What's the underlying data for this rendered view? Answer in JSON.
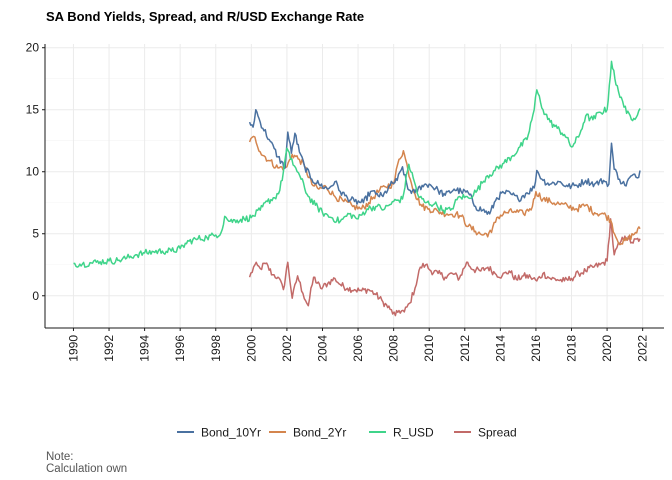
{
  "chart_data": {
    "type": "line",
    "title": "SA Bond Yields, Spread, and R/USD Exchange Rate",
    "xlabel": "",
    "ylabel": "",
    "xlim": [
      1990,
      2022
    ],
    "ylim": [
      -2.6,
      20.3
    ],
    "x_ticks": [
      "1990",
      "1992",
      "1994",
      "1996",
      "1998",
      "2000",
      "2002",
      "2004",
      "2006",
      "2008",
      "2010",
      "2012",
      "2014",
      "2016",
      "2018",
      "2020",
      "2022"
    ],
    "y_ticks": [
      "0",
      "5",
      "10",
      "15",
      "20"
    ],
    "grid": true,
    "legend_position": "bottom",
    "series": [
      {
        "name": "Bond_10Yr",
        "color": "#4a71a0",
        "points": [
          [
            1999.9,
            14.0
          ],
          [
            2000.1,
            13.6
          ],
          [
            2000.25,
            15.0
          ],
          [
            2000.5,
            14.0
          ],
          [
            2001.0,
            12.6
          ],
          [
            2001.5,
            11.2
          ],
          [
            2001.9,
            10.3
          ],
          [
            2002.05,
            13.2
          ],
          [
            2002.25,
            11.5
          ],
          [
            2002.45,
            13.1
          ],
          [
            2002.7,
            11.6
          ],
          [
            2003.0,
            10.4
          ],
          [
            2003.4,
            9.4
          ],
          [
            2003.8,
            9.0
          ],
          [
            2004.3,
            8.6
          ],
          [
            2004.7,
            9.2
          ],
          [
            2005.0,
            8.4
          ],
          [
            2005.4,
            7.9
          ],
          [
            2005.8,
            7.6
          ],
          [
            2006.3,
            7.5
          ],
          [
            2006.7,
            8.4
          ],
          [
            2007.0,
            8.2
          ],
          [
            2007.4,
            8.0
          ],
          [
            2007.8,
            8.9
          ],
          [
            2008.2,
            9.3
          ],
          [
            2008.5,
            10.4
          ],
          [
            2008.8,
            8.6
          ],
          [
            2009.2,
            8.3
          ],
          [
            2009.6,
            8.9
          ],
          [
            2010.0,
            9.0
          ],
          [
            2010.5,
            8.5
          ],
          [
            2010.9,
            8.1
          ],
          [
            2011.4,
            8.6
          ],
          [
            2011.8,
            8.4
          ],
          [
            2012.2,
            8.3
          ],
          [
            2012.6,
            7.2
          ],
          [
            2013.0,
            6.9
          ],
          [
            2013.4,
            6.6
          ],
          [
            2013.8,
            7.9
          ],
          [
            2014.2,
            8.3
          ],
          [
            2014.6,
            8.2
          ],
          [
            2015.0,
            7.8
          ],
          [
            2015.5,
            8.3
          ],
          [
            2015.9,
            8.7
          ],
          [
            2016.05,
            10.1
          ],
          [
            2016.4,
            9.3
          ],
          [
            2016.8,
            9.0
          ],
          [
            2017.3,
            9.2
          ],
          [
            2017.8,
            8.8
          ],
          [
            2018.3,
            8.9
          ],
          [
            2018.8,
            9.3
          ],
          [
            2019.3,
            9.0
          ],
          [
            2019.8,
            9.3
          ],
          [
            2020.1,
            9.0
          ],
          [
            2020.25,
            12.3
          ],
          [
            2020.4,
            10.2
          ],
          [
            2020.7,
            9.4
          ],
          [
            2021.0,
            8.9
          ],
          [
            2021.4,
            9.7
          ],
          [
            2021.7,
            9.5
          ],
          [
            2021.85,
            10.1
          ]
        ]
      },
      {
        "name": "Bond_2Yr",
        "color": "#d4854e",
        "points": [
          [
            1999.9,
            12.4
          ],
          [
            2000.2,
            12.8
          ],
          [
            2000.5,
            11.6
          ],
          [
            2001.0,
            10.9
          ],
          [
            2001.5,
            10.3
          ],
          [
            2002.0,
            10.4
          ],
          [
            2002.3,
            11.4
          ],
          [
            2002.7,
            11.0
          ],
          [
            2003.0,
            10.4
          ],
          [
            2003.4,
            9.0
          ],
          [
            2003.8,
            8.6
          ],
          [
            2004.2,
            8.8
          ],
          [
            2004.7,
            8.0
          ],
          [
            2005.2,
            7.6
          ],
          [
            2005.7,
            7.2
          ],
          [
            2006.2,
            7.0
          ],
          [
            2006.6,
            7.5
          ],
          [
            2007.0,
            8.2
          ],
          [
            2007.5,
            8.8
          ],
          [
            2008.0,
            9.0
          ],
          [
            2008.3,
            11.0
          ],
          [
            2008.55,
            11.7
          ],
          [
            2008.8,
            10.2
          ],
          [
            2009.2,
            8.2
          ],
          [
            2009.6,
            7.2
          ],
          [
            2010.0,
            7.0
          ],
          [
            2010.5,
            6.8
          ],
          [
            2011.0,
            6.6
          ],
          [
            2011.5,
            6.6
          ],
          [
            2011.8,
            6.4
          ],
          [
            2012.2,
            5.6
          ],
          [
            2012.6,
            5.2
          ],
          [
            2013.0,
            4.9
          ],
          [
            2013.5,
            5.1
          ],
          [
            2013.8,
            6.3
          ],
          [
            2014.3,
            6.7
          ],
          [
            2014.8,
            6.8
          ],
          [
            2015.3,
            6.6
          ],
          [
            2015.8,
            7.2
          ],
          [
            2016.0,
            8.4
          ],
          [
            2016.4,
            7.8
          ],
          [
            2016.8,
            7.6
          ],
          [
            2017.3,
            7.4
          ],
          [
            2017.8,
            7.2
          ],
          [
            2018.3,
            7.0
          ],
          [
            2018.8,
            7.3
          ],
          [
            2019.3,
            6.7
          ],
          [
            2019.8,
            6.6
          ],
          [
            2020.2,
            6.1
          ],
          [
            2020.5,
            4.7
          ],
          [
            2020.8,
            4.2
          ],
          [
            2021.2,
            4.6
          ],
          [
            2021.6,
            5.1
          ],
          [
            2021.85,
            5.4
          ]
        ]
      },
      {
        "name": "R_USD",
        "color": "#3fd48a",
        "points": [
          [
            1990.0,
            2.6
          ],
          [
            1990.5,
            2.55
          ],
          [
            1991.0,
            2.65
          ],
          [
            1991.5,
            2.75
          ],
          [
            1992.0,
            2.8
          ],
          [
            1992.5,
            2.85
          ],
          [
            1993.0,
            3.05
          ],
          [
            1993.5,
            3.3
          ],
          [
            1994.0,
            3.45
          ],
          [
            1994.5,
            3.55
          ],
          [
            1995.0,
            3.6
          ],
          [
            1995.5,
            3.6
          ],
          [
            1996.0,
            3.8
          ],
          [
            1996.5,
            4.4
          ],
          [
            1997.0,
            4.6
          ],
          [
            1997.5,
            4.7
          ],
          [
            1998.0,
            4.9
          ],
          [
            1998.3,
            5.1
          ],
          [
            1998.5,
            6.4
          ],
          [
            1998.8,
            6.0
          ],
          [
            1999.2,
            6.1
          ],
          [
            1999.6,
            6.2
          ],
          [
            2000.0,
            6.3
          ],
          [
            2000.5,
            6.9
          ],
          [
            2000.9,
            7.6
          ],
          [
            2001.3,
            7.9
          ],
          [
            2001.6,
            8.5
          ],
          [
            2001.8,
            10.0
          ],
          [
            2002.0,
            11.9
          ],
          [
            2002.2,
            11.0
          ],
          [
            2002.5,
            10.3
          ],
          [
            2002.8,
            9.4
          ],
          [
            2003.2,
            8.0
          ],
          [
            2003.6,
            7.3
          ],
          [
            2004.0,
            6.7
          ],
          [
            2004.5,
            6.3
          ],
          [
            2005.0,
            6.0
          ],
          [
            2005.5,
            6.6
          ],
          [
            2006.0,
            6.2
          ],
          [
            2006.5,
            7.0
          ],
          [
            2007.0,
            7.2
          ],
          [
            2007.5,
            7.0
          ],
          [
            2008.0,
            7.6
          ],
          [
            2008.5,
            7.8
          ],
          [
            2008.85,
            10.6
          ],
          [
            2009.1,
            9.5
          ],
          [
            2009.4,
            8.0
          ],
          [
            2009.8,
            7.5
          ],
          [
            2010.3,
            7.4
          ],
          [
            2010.8,
            6.9
          ],
          [
            2011.2,
            6.9
          ],
          [
            2011.7,
            8.0
          ],
          [
            2012.2,
            7.9
          ],
          [
            2012.7,
            8.5
          ],
          [
            2013.2,
            9.6
          ],
          [
            2013.7,
            10.1
          ],
          [
            2014.2,
            10.7
          ],
          [
            2014.7,
            11.3
          ],
          [
            2015.1,
            12.0
          ],
          [
            2015.5,
            12.6
          ],
          [
            2015.9,
            15.0
          ],
          [
            2016.05,
            16.6
          ],
          [
            2016.4,
            15.0
          ],
          [
            2016.8,
            14.0
          ],
          [
            2017.2,
            13.5
          ],
          [
            2017.6,
            13.0
          ],
          [
            2018.0,
            12.0
          ],
          [
            2018.4,
            12.8
          ],
          [
            2018.8,
            14.5
          ],
          [
            2019.2,
            14.2
          ],
          [
            2019.6,
            14.8
          ],
          [
            2020.0,
            15.0
          ],
          [
            2020.25,
            18.9
          ],
          [
            2020.5,
            17.0
          ],
          [
            2020.8,
            16.0
          ],
          [
            2021.1,
            14.7
          ],
          [
            2021.5,
            14.3
          ],
          [
            2021.85,
            15.1
          ]
        ]
      },
      {
        "name": "Spread",
        "color": "#c26a68",
        "points": [
          [
            1999.9,
            1.5
          ],
          [
            2000.2,
            2.5
          ],
          [
            2000.5,
            2.2
          ],
          [
            2000.8,
            2.6
          ],
          [
            2001.2,
            1.7
          ],
          [
            2001.5,
            1.5
          ],
          [
            2001.8,
            0.5
          ],
          [
            2002.05,
            2.7
          ],
          [
            2002.3,
            -0.2
          ],
          [
            2002.6,
            1.6
          ],
          [
            2002.9,
            0.2
          ],
          [
            2003.2,
            -0.8
          ],
          [
            2003.5,
            1.5
          ],
          [
            2003.9,
            0.6
          ],
          [
            2004.3,
            1.0
          ],
          [
            2004.7,
            1.4
          ],
          [
            2005.0,
            0.9
          ],
          [
            2005.4,
            0.6
          ],
          [
            2005.8,
            0.5
          ],
          [
            2006.2,
            0.4
          ],
          [
            2006.6,
            0.5
          ],
          [
            2007.0,
            0.1
          ],
          [
            2007.4,
            -0.5
          ],
          [
            2007.8,
            -1.1
          ],
          [
            2008.1,
            -1.6
          ],
          [
            2008.3,
            -1.2
          ],
          [
            2008.6,
            -1.3
          ],
          [
            2008.9,
            -0.6
          ],
          [
            2009.2,
            0.6
          ],
          [
            2009.5,
            2.3
          ],
          [
            2009.8,
            2.5
          ],
          [
            2010.1,
            2.0
          ],
          [
            2010.5,
            1.8
          ],
          [
            2010.9,
            1.5
          ],
          [
            2011.3,
            1.8
          ],
          [
            2011.7,
            1.4
          ],
          [
            2012.1,
            2.7
          ],
          [
            2012.5,
            2.1
          ],
          [
            2012.9,
            2.0
          ],
          [
            2013.3,
            2.3
          ],
          [
            2013.7,
            1.8
          ],
          [
            2014.1,
            1.6
          ],
          [
            2014.5,
            2.0
          ],
          [
            2014.9,
            1.3
          ],
          [
            2015.3,
            1.6
          ],
          [
            2015.7,
            1.5
          ],
          [
            2016.05,
            1.2
          ],
          [
            2016.4,
            1.8
          ],
          [
            2016.8,
            1.4
          ],
          [
            2017.2,
            1.3
          ],
          [
            2017.6,
            1.2
          ],
          [
            2018.0,
            1.4
          ],
          [
            2018.4,
            1.8
          ],
          [
            2018.8,
            2.0
          ],
          [
            2019.2,
            2.3
          ],
          [
            2019.6,
            2.5
          ],
          [
            2020.0,
            2.8
          ],
          [
            2020.2,
            6.2
          ],
          [
            2020.4,
            3.3
          ],
          [
            2020.7,
            4.2
          ],
          [
            2021.0,
            4.8
          ],
          [
            2021.4,
            4.3
          ],
          [
            2021.85,
            4.6
          ]
        ]
      }
    ]
  },
  "caption": {
    "note": "Note:",
    "source": "Calculation own"
  }
}
